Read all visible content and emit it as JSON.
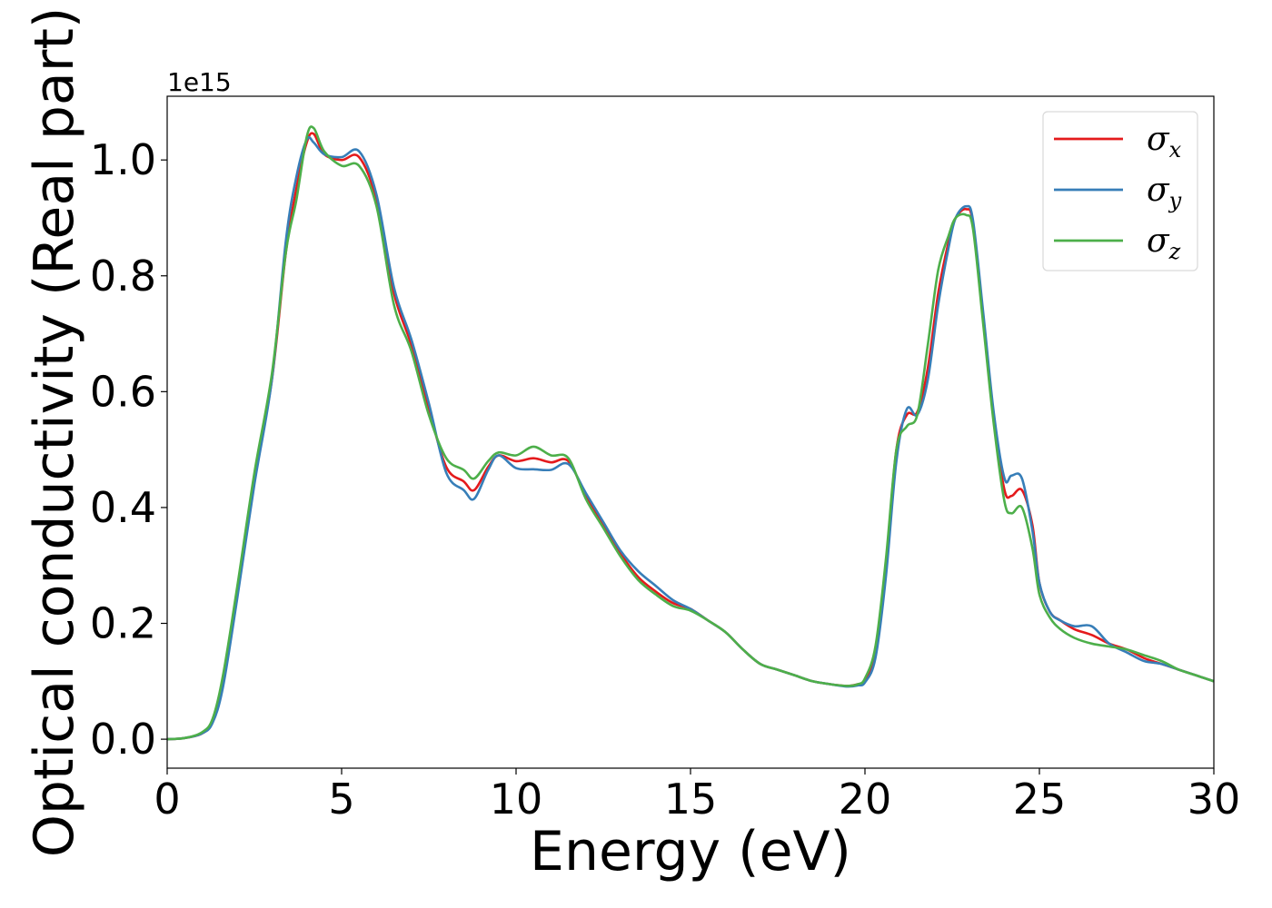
{
  "chart_data": {
    "type": "line",
    "xlabel": "Energy (eV)",
    "ylabel": "Optical conductivity (Real part)",
    "y_offset_text": "1e15",
    "xlim": [
      0,
      30
    ],
    "ylim": [
      -0.05,
      1.11
    ],
    "x_ticks": [
      0,
      5,
      10,
      15,
      20,
      25,
      30
    ],
    "x_tick_labels": [
      "0",
      "5",
      "10",
      "15",
      "20",
      "25",
      "30"
    ],
    "y_ticks": [
      0.0,
      0.2,
      0.4,
      0.6,
      0.8,
      1.0
    ],
    "y_tick_labels": [
      "0.0",
      "0.2",
      "0.4",
      "0.6",
      "0.8",
      "1.0"
    ],
    "grid": false,
    "legend_position": "top-right",
    "series": [
      {
        "name": "σx",
        "symbol": "σ",
        "sub": "x",
        "color": "#e41a1c",
        "x": [
          0,
          0.5,
          1.0,
          1.3,
          1.6,
          2.0,
          2.5,
          3.0,
          3.4,
          3.7,
          4.0,
          4.2,
          4.5,
          5.0,
          5.5,
          6.0,
          6.5,
          7.0,
          7.5,
          8.0,
          8.5,
          8.8,
          9.2,
          9.5,
          10.0,
          10.5,
          11.0,
          11.5,
          12.0,
          12.5,
          13.0,
          13.5,
          14.0,
          14.5,
          15.0,
          15.5,
          16.0,
          16.5,
          17.0,
          17.5,
          18.0,
          18.5,
          19.0,
          19.5,
          19.8,
          20.0,
          20.3,
          20.6,
          20.9,
          21.2,
          21.5,
          21.8,
          22.1,
          22.4,
          22.6,
          22.9,
          23.1,
          23.4,
          23.7,
          24.0,
          24.2,
          24.5,
          24.8,
          25.0,
          25.3,
          25.6,
          26.0,
          26.5,
          27.0,
          27.5,
          28.0,
          28.5,
          29.0,
          29.5,
          30.0
        ],
        "y": [
          0.0,
          0.002,
          0.01,
          0.03,
          0.1,
          0.25,
          0.45,
          0.62,
          0.84,
          0.95,
          1.03,
          1.045,
          1.01,
          1.0,
          1.005,
          0.93,
          0.77,
          0.68,
          0.57,
          0.47,
          0.445,
          0.43,
          0.47,
          0.49,
          0.48,
          0.485,
          0.478,
          0.48,
          0.42,
          0.37,
          0.32,
          0.28,
          0.255,
          0.235,
          0.225,
          0.205,
          0.185,
          0.155,
          0.13,
          0.12,
          0.11,
          0.1,
          0.095,
          0.092,
          0.095,
          0.1,
          0.15,
          0.3,
          0.5,
          0.56,
          0.565,
          0.64,
          0.77,
          0.86,
          0.9,
          0.915,
          0.89,
          0.72,
          0.55,
          0.43,
          0.42,
          0.43,
          0.37,
          0.27,
          0.22,
          0.205,
          0.19,
          0.18,
          0.165,
          0.155,
          0.14,
          0.13,
          0.12,
          0.11,
          0.1
        ]
      },
      {
        "name": "σy",
        "symbol": "σ",
        "sub": "y",
        "color": "#377eb8",
        "x": [
          0,
          0.5,
          1.0,
          1.3,
          1.6,
          2.0,
          2.5,
          3.0,
          3.4,
          3.7,
          4.0,
          4.2,
          4.5,
          5.0,
          5.5,
          6.0,
          6.5,
          7.0,
          7.5,
          8.0,
          8.5,
          8.8,
          9.2,
          9.5,
          10.0,
          10.5,
          11.0,
          11.5,
          12.0,
          12.5,
          13.0,
          13.5,
          14.0,
          14.5,
          15.0,
          15.5,
          16.0,
          16.5,
          17.0,
          17.5,
          18.0,
          18.5,
          19.0,
          19.5,
          19.8,
          20.0,
          20.3,
          20.6,
          20.9,
          21.2,
          21.5,
          21.8,
          22.1,
          22.4,
          22.6,
          22.9,
          23.1,
          23.4,
          23.7,
          24.0,
          24.2,
          24.5,
          24.8,
          25.0,
          25.3,
          25.6,
          26.0,
          26.5,
          27.0,
          27.5,
          28.0,
          28.5,
          29.0,
          29.5,
          30.0
        ],
        "y": [
          0.0,
          0.002,
          0.01,
          0.028,
          0.09,
          0.24,
          0.44,
          0.62,
          0.86,
          0.97,
          1.035,
          1.03,
          1.01,
          1.005,
          1.015,
          0.94,
          0.78,
          0.69,
          0.58,
          0.46,
          0.43,
          0.415,
          0.465,
          0.49,
          0.468,
          0.466,
          0.465,
          0.475,
          0.425,
          0.375,
          0.325,
          0.29,
          0.265,
          0.24,
          0.225,
          0.205,
          0.185,
          0.155,
          0.13,
          0.12,
          0.11,
          0.1,
          0.095,
          0.091,
          0.093,
          0.098,
          0.14,
          0.28,
          0.48,
          0.57,
          0.56,
          0.62,
          0.75,
          0.85,
          0.9,
          0.92,
          0.895,
          0.73,
          0.56,
          0.45,
          0.455,
          0.45,
          0.36,
          0.27,
          0.22,
          0.205,
          0.195,
          0.195,
          0.165,
          0.15,
          0.135,
          0.13,
          0.12,
          0.11,
          0.1
        ]
      },
      {
        "name": "σz",
        "symbol": "σ",
        "sub": "z",
        "color": "#4daf4a",
        "x": [
          0,
          0.5,
          1.0,
          1.3,
          1.6,
          2.0,
          2.5,
          3.0,
          3.4,
          3.7,
          4.0,
          4.2,
          4.5,
          5.0,
          5.5,
          6.0,
          6.5,
          7.0,
          7.5,
          8.0,
          8.5,
          8.8,
          9.2,
          9.5,
          10.0,
          10.5,
          11.0,
          11.5,
          12.0,
          12.5,
          13.0,
          13.5,
          14.0,
          14.5,
          15.0,
          15.5,
          16.0,
          16.5,
          17.0,
          17.5,
          18.0,
          18.5,
          19.0,
          19.5,
          19.8,
          20.0,
          20.3,
          20.6,
          20.9,
          21.2,
          21.5,
          21.8,
          22.1,
          22.4,
          22.6,
          22.9,
          23.1,
          23.4,
          23.7,
          24.0,
          24.2,
          24.5,
          24.8,
          25.0,
          25.3,
          25.6,
          26.0,
          26.5,
          27.0,
          27.5,
          28.0,
          28.5,
          29.0,
          29.5,
          30.0
        ],
        "y": [
          0.0,
          0.002,
          0.012,
          0.035,
          0.11,
          0.26,
          0.46,
          0.63,
          0.84,
          0.93,
          1.04,
          1.055,
          1.015,
          0.99,
          0.99,
          0.92,
          0.75,
          0.67,
          0.56,
          0.485,
          0.465,
          0.45,
          0.48,
          0.495,
          0.49,
          0.505,
          0.49,
          0.485,
          0.415,
          0.365,
          0.315,
          0.275,
          0.25,
          0.23,
          0.222,
          0.205,
          0.185,
          0.155,
          0.13,
          0.12,
          0.11,
          0.1,
          0.095,
          0.092,
          0.095,
          0.105,
          0.16,
          0.31,
          0.5,
          0.54,
          0.56,
          0.68,
          0.81,
          0.87,
          0.9,
          0.905,
          0.88,
          0.71,
          0.54,
          0.41,
          0.39,
          0.4,
          0.33,
          0.25,
          0.21,
          0.19,
          0.175,
          0.165,
          0.16,
          0.155,
          0.145,
          0.135,
          0.12,
          0.11,
          0.1
        ]
      }
    ]
  }
}
